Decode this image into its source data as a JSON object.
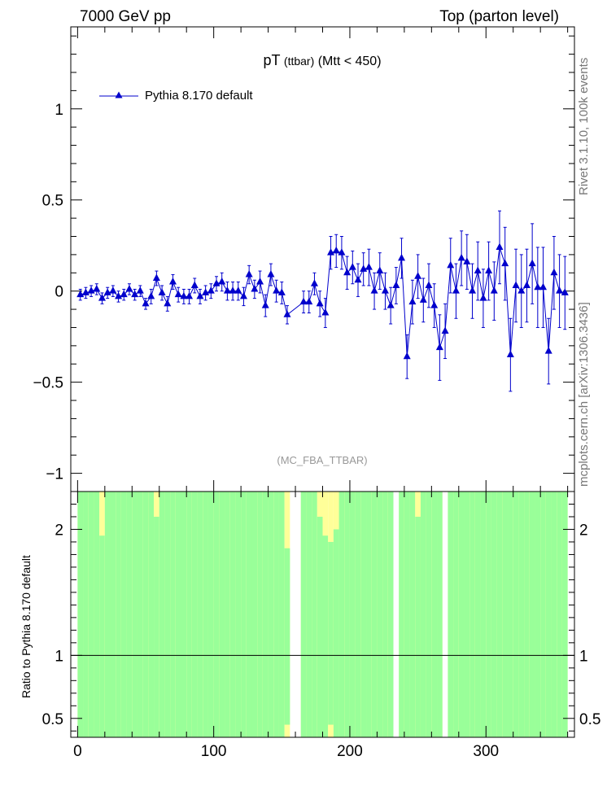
{
  "header": {
    "left": "7000 GeV pp",
    "right": "Top (parton level)"
  },
  "side_labels": {
    "top": "Rivet 3.1.10,  100k events",
    "bottom": "mcplots.cern.ch [arXiv:1306.3436]"
  },
  "chart_data": [
    {
      "type": "line",
      "title": "pT (ttbar) (Mtt < 450)",
      "title_main": "pT",
      "title_sub": "(ttbar)",
      "title_cut": "(Mtt < 450)",
      "watermark": "(MC_FBA_TTBAR)",
      "xlim": [
        -5,
        365
      ],
      "ylim": [
        -1.1,
        1.45
      ],
      "yticks": [
        -1,
        -0.5,
        0,
        0.5,
        1
      ],
      "ytick_labels": [
        "−1",
        "−0.5",
        "0",
        "0.5",
        "1"
      ],
      "legend_position": "top-left",
      "series": [
        {
          "name": "Pythia 8.170 default",
          "color": "#0000cc",
          "marker": "triangle-up",
          "x": [
            2,
            6,
            10,
            14,
            18,
            22,
            26,
            30,
            34,
            38,
            42,
            46,
            50,
            54,
            58,
            62,
            66,
            70,
            74,
            78,
            82,
            86,
            90,
            94,
            98,
            102,
            106,
            110,
            114,
            118,
            122,
            126,
            130,
            134,
            138,
            142,
            146,
            150,
            154,
            166,
            170,
            174,
            178,
            182,
            186,
            190,
            194,
            198,
            202,
            206,
            210,
            214,
            218,
            222,
            226,
            230,
            234,
            238,
            242,
            246,
            250,
            254,
            258,
            262,
            266,
            270,
            274,
            278,
            282,
            286,
            290,
            294,
            298,
            302,
            306,
            310,
            314,
            318,
            322,
            326,
            330,
            334,
            338,
            342,
            346,
            350,
            354,
            358
          ],
          "y": [
            -0.02,
            -0.01,
            0.0,
            0.01,
            -0.04,
            -0.01,
            0.0,
            -0.03,
            -0.02,
            0.01,
            -0.02,
            0.0,
            -0.07,
            -0.03,
            0.07,
            -0.01,
            -0.07,
            0.05,
            -0.02,
            -0.03,
            -0.03,
            0.03,
            -0.03,
            -0.01,
            0.0,
            0.04,
            0.05,
            0.0,
            0.0,
            0.0,
            -0.03,
            0.09,
            0.01,
            0.05,
            -0.08,
            0.09,
            0.0,
            -0.01,
            -0.13,
            -0.06,
            -0.06,
            0.04,
            -0.07,
            -0.12,
            0.21,
            0.22,
            0.21,
            0.1,
            0.13,
            0.06,
            0.12,
            0.13,
            0.0,
            0.11,
            0.0,
            -0.08,
            0.03,
            0.18,
            -0.36,
            -0.06,
            0.08,
            -0.05,
            0.03,
            -0.08,
            -0.31,
            -0.22,
            0.14,
            0.0,
            0.18,
            0.16,
            0.0,
            0.11,
            -0.04,
            0.11,
            0.0,
            0.24,
            0.15,
            -0.35,
            0.03,
            0.0,
            0.03,
            0.15,
            0.02,
            0.02,
            -0.33,
            0.1,
            0.0,
            -0.01
          ],
          "yerr": [
            0.03,
            0.03,
            0.03,
            0.03,
            0.03,
            0.03,
            0.03,
            0.03,
            0.03,
            0.03,
            0.03,
            0.03,
            0.03,
            0.04,
            0.04,
            0.04,
            0.04,
            0.04,
            0.04,
            0.04,
            0.04,
            0.04,
            0.04,
            0.04,
            0.04,
            0.04,
            0.05,
            0.05,
            0.05,
            0.05,
            0.05,
            0.05,
            0.05,
            0.06,
            0.06,
            0.06,
            0.06,
            0.06,
            0.05,
            0.06,
            0.06,
            0.06,
            0.07,
            0.08,
            0.09,
            0.09,
            0.09,
            0.09,
            0.09,
            0.09,
            0.09,
            0.1,
            0.1,
            0.1,
            0.1,
            0.1,
            0.1,
            0.11,
            0.12,
            0.12,
            0.12,
            0.12,
            0.12,
            0.12,
            0.18,
            0.15,
            0.15,
            0.15,
            0.15,
            0.15,
            0.15,
            0.16,
            0.16,
            0.16,
            0.16,
            0.2,
            0.2,
            0.2,
            0.2,
            0.2,
            0.2,
            0.22,
            0.22,
            0.22,
            0.18,
            0.2,
            0.2,
            0.2
          ]
        }
      ]
    },
    {
      "type": "area",
      "ylabel": "Ratio to Pythia 8.170 default",
      "xlim": [
        -5,
        365
      ],
      "ylim": [
        0.35,
        2.3
      ],
      "yticks": [
        0.5,
        1,
        2
      ],
      "ytick_labels": [
        "0.5",
        "1",
        "2"
      ],
      "xticks": [
        0,
        100,
        200,
        300
      ],
      "xtick_labels": [
        "0",
        "100",
        "200",
        "300"
      ],
      "reference_line": 1,
      "band_colors": {
        "inner": "#99ff99",
        "outer": "#ffff99"
      },
      "bins": {
        "x_start": [
          0,
          4,
          8,
          12,
          16,
          20,
          24,
          28,
          32,
          36,
          40,
          44,
          48,
          52,
          56,
          60,
          64,
          68,
          72,
          76,
          80,
          84,
          88,
          92,
          96,
          100,
          104,
          108,
          112,
          116,
          120,
          124,
          128,
          132,
          136,
          140,
          144,
          148,
          152,
          164,
          168,
          172,
          176,
          180,
          184,
          188,
          192,
          196,
          200,
          204,
          208,
          212,
          216,
          220,
          224,
          228,
          236,
          240,
          244,
          248,
          252,
          256,
          260,
          264,
          272,
          276,
          280,
          284,
          288,
          292,
          296,
          300,
          304,
          308,
          312,
          316,
          320,
          324,
          328,
          332,
          336,
          340,
          344,
          348,
          352,
          356
        ],
        "green_low": [
          0.35,
          0.35,
          0.35,
          0.35,
          0.35,
          0.35,
          0.35,
          0.35,
          0.35,
          0.35,
          0.35,
          0.35,
          0.35,
          0.35,
          0.35,
          0.35,
          0.35,
          0.35,
          0.35,
          0.35,
          0.35,
          0.35,
          0.35,
          0.35,
          0.35,
          0.35,
          0.35,
          0.35,
          0.35,
          0.35,
          0.35,
          0.35,
          0.35,
          0.35,
          0.35,
          0.35,
          0.35,
          0.35,
          0.45,
          0.35,
          0.35,
          0.35,
          0.35,
          0.35,
          0.45,
          0.35,
          0.35,
          0.35,
          0.35,
          0.35,
          0.35,
          0.35,
          0.35,
          0.35,
          0.35,
          0.35,
          0.35,
          0.35,
          0.35,
          0.35,
          0.35,
          0.35,
          0.35,
          0.35,
          0.35,
          0.35,
          0.35,
          0.35,
          0.35,
          0.35,
          0.35,
          0.35,
          0.35,
          0.35,
          0.35,
          0.35,
          0.35,
          0.35,
          0.35,
          0.35,
          0.35,
          0.35,
          0.35,
          0.35,
          0.35,
          0.35
        ],
        "green_high": [
          2.3,
          2.3,
          2.3,
          2.3,
          1.95,
          2.3,
          2.3,
          2.3,
          2.3,
          2.3,
          2.3,
          2.3,
          2.3,
          2.3,
          2.1,
          2.3,
          2.3,
          2.3,
          2.3,
          2.3,
          2.3,
          2.3,
          2.3,
          2.3,
          2.3,
          2.3,
          2.3,
          2.3,
          2.3,
          2.3,
          2.3,
          2.3,
          2.3,
          2.3,
          2.3,
          2.3,
          2.3,
          2.3,
          1.85,
          2.3,
          2.3,
          2.3,
          2.1,
          1.95,
          1.9,
          2.0,
          2.3,
          2.3,
          2.3,
          2.3,
          2.3,
          2.3,
          2.3,
          2.3,
          2.3,
          2.3,
          2.3,
          2.3,
          2.3,
          2.1,
          2.3,
          2.3,
          2.3,
          2.3,
          2.3,
          2.3,
          2.3,
          2.3,
          2.3,
          2.3,
          2.3,
          2.3,
          2.3,
          2.3,
          2.3,
          2.3,
          2.3,
          2.3,
          2.3,
          2.3,
          2.3,
          2.3,
          2.3,
          2.3,
          2.3,
          2.3
        ],
        "yellow_low": [
          0.35,
          0.35,
          0.35,
          0.35,
          0.35,
          0.35,
          0.35,
          0.35,
          0.35,
          0.35,
          0.35,
          0.35,
          0.35,
          0.35,
          0.35,
          0.35,
          0.35,
          0.35,
          0.35,
          0.35,
          0.35,
          0.35,
          0.35,
          0.35,
          0.35,
          0.35,
          0.35,
          0.35,
          0.35,
          0.35,
          0.35,
          0.35,
          0.35,
          0.35,
          0.35,
          0.35,
          0.35,
          0.35,
          0.35,
          0.35,
          0.35,
          0.35,
          0.35,
          0.35,
          0.35,
          0.35,
          0.35,
          0.35,
          0.35,
          0.35,
          0.35,
          0.35,
          0.35,
          0.35,
          0.35,
          0.35,
          0.35,
          0.35,
          0.35,
          0.35,
          0.35,
          0.35,
          0.35,
          0.35,
          0.35,
          0.35,
          0.35,
          0.35,
          0.35,
          0.35,
          0.35,
          0.35,
          0.35,
          0.35,
          0.35,
          0.35,
          0.35,
          0.35,
          0.35,
          0.35,
          0.35,
          0.35,
          0.35,
          0.35,
          0.35,
          0.35
        ],
        "yellow_high": [
          2.3,
          2.3,
          2.3,
          2.3,
          2.3,
          2.3,
          2.3,
          2.3,
          2.3,
          2.3,
          2.3,
          2.3,
          2.3,
          2.3,
          2.3,
          2.3,
          2.3,
          2.3,
          2.3,
          2.3,
          2.3,
          2.3,
          2.3,
          2.3,
          2.3,
          2.3,
          2.3,
          2.3,
          2.3,
          2.3,
          2.3,
          2.3,
          2.3,
          2.3,
          2.3,
          2.3,
          2.3,
          2.3,
          2.3,
          2.3,
          2.3,
          2.3,
          2.3,
          2.3,
          2.3,
          2.3,
          2.3,
          2.3,
          2.3,
          2.3,
          2.3,
          2.3,
          2.3,
          2.3,
          2.3,
          2.3,
          2.3,
          2.3,
          2.3,
          2.3,
          2.3,
          2.3,
          2.3,
          2.3,
          2.3,
          2.3,
          2.3,
          2.3,
          2.3,
          2.3,
          2.3,
          2.3,
          2.3,
          2.3,
          2.3,
          2.3,
          2.3,
          2.3,
          2.3,
          2.3,
          2.3,
          2.3,
          2.3,
          2.3,
          2.3,
          2.3
        ]
      }
    }
  ]
}
